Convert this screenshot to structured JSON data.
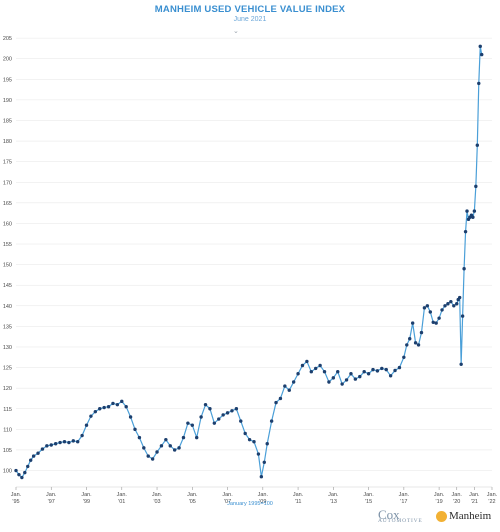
{
  "header": {
    "title": "MANHEIM USED VEHICLE VALUE INDEX",
    "subtitle": "June 2021",
    "collapse_icon": "chevron-down-icon"
  },
  "footer": {
    "note": "January 1995=100",
    "logo_cox_main": "Cox",
    "logo_cox_sub": "AUTOMOTIVE",
    "logo_manheim": "Manheim"
  },
  "colors": {
    "line": "#4a9fd8",
    "marker": "#1c3f6e",
    "title": "#3a8fd0",
    "grid": "#e5e5e5"
  },
  "chart_data": {
    "type": "line",
    "title": "MANHEIM USED VEHICLE VALUE INDEX",
    "subtitle": "June 2021",
    "ylim": [
      96,
      206
    ],
    "y_ticks": [
      100,
      105,
      110,
      115,
      120,
      125,
      130,
      135,
      140,
      145,
      150,
      155,
      160,
      165,
      170,
      175,
      180,
      185,
      190,
      195,
      200,
      205
    ],
    "x_ticks": [
      {
        "year": 1995,
        "line1": "Jan.",
        "line2": "'95"
      },
      {
        "year": 1997,
        "line1": "Jan.",
        "line2": "'97"
      },
      {
        "year": 1999,
        "line1": "Jan.",
        "line2": "'99"
      },
      {
        "year": 2001,
        "line1": "Jan.",
        "line2": "'01"
      },
      {
        "year": 2003,
        "line1": "Jan.",
        "line2": "'03"
      },
      {
        "year": 2005,
        "line1": "Jan.",
        "line2": "'05"
      },
      {
        "year": 2007,
        "line1": "Jan.",
        "line2": "'07"
      },
      {
        "year": 2009,
        "line1": "Jan.",
        "line2": "'09"
      },
      {
        "year": 2011,
        "line1": "Jan.",
        "line2": "'11"
      },
      {
        "year": 2013,
        "line1": "Jan.",
        "line2": "'13"
      },
      {
        "year": 2015,
        "line1": "Jan.",
        "line2": "'15"
      },
      {
        "year": 2017,
        "line1": "Jan.",
        "line2": "'17"
      },
      {
        "year": 2019,
        "line1": "Jan.",
        "line2": "'19"
      },
      {
        "year": 2020,
        "line1": "Jan.",
        "line2": "'20"
      },
      {
        "year": 2021,
        "line1": "Jan.",
        "line2": "'21"
      },
      {
        "year": 2022,
        "line1": "Jan.",
        "line2": "'22"
      }
    ],
    "series": [
      {
        "values": [
          {
            "x": "1995-01",
            "y": 100
          },
          {
            "x": "1995-03",
            "y": 99
          },
          {
            "x": "1995-05",
            "y": 98.3
          },
          {
            "x": "1995-07",
            "y": 99.5
          },
          {
            "x": "1995-09",
            "y": 101
          },
          {
            "x": "1995-11",
            "y": 102.5
          },
          {
            "x": "1996-01",
            "y": 103.5
          },
          {
            "x": "1996-04",
            "y": 104.2
          },
          {
            "x": "1996-07",
            "y": 105.2
          },
          {
            "x": "1996-10",
            "y": 106
          },
          {
            "x": "1997-01",
            "y": 106.2
          },
          {
            "x": "1997-04",
            "y": 106.5
          },
          {
            "x": "1997-07",
            "y": 106.8
          },
          {
            "x": "1997-10",
            "y": 107
          },
          {
            "x": "1998-01",
            "y": 106.8
          },
          {
            "x": "1998-04",
            "y": 107.2
          },
          {
            "x": "1998-07",
            "y": 107
          },
          {
            "x": "1998-10",
            "y": 108.5
          },
          {
            "x": "1999-01",
            "y": 111
          },
          {
            "x": "1999-04",
            "y": 113.2
          },
          {
            "x": "1999-07",
            "y": 114.3
          },
          {
            "x": "1999-10",
            "y": 115
          },
          {
            "x": "2000-01",
            "y": 115.3
          },
          {
            "x": "2000-04",
            "y": 115.5
          },
          {
            "x": "2000-07",
            "y": 116.3
          },
          {
            "x": "2000-10",
            "y": 116
          },
          {
            "x": "2001-01",
            "y": 116.8
          },
          {
            "x": "2001-04",
            "y": 115.5
          },
          {
            "x": "2001-07",
            "y": 113
          },
          {
            "x": "2001-10",
            "y": 110
          },
          {
            "x": "2002-01",
            "y": 108
          },
          {
            "x": "2002-04",
            "y": 105.5
          },
          {
            "x": "2002-07",
            "y": 103.5
          },
          {
            "x": "2002-10",
            "y": 102.8
          },
          {
            "x": "2003-01",
            "y": 104.5
          },
          {
            "x": "2003-04",
            "y": 106
          },
          {
            "x": "2003-07",
            "y": 107.5
          },
          {
            "x": "2003-10",
            "y": 106
          },
          {
            "x": "2004-01",
            "y": 105
          },
          {
            "x": "2004-04",
            "y": 105.5
          },
          {
            "x": "2004-07",
            "y": 108
          },
          {
            "x": "2004-10",
            "y": 111.5
          },
          {
            "x": "2005-01",
            "y": 111
          },
          {
            "x": "2005-04",
            "y": 108
          },
          {
            "x": "2005-07",
            "y": 113
          },
          {
            "x": "2005-10",
            "y": 116
          },
          {
            "x": "2006-01",
            "y": 115
          },
          {
            "x": "2006-04",
            "y": 111.5
          },
          {
            "x": "2006-07",
            "y": 112.5
          },
          {
            "x": "2006-10",
            "y": 113.5
          },
          {
            "x": "2007-01",
            "y": 114
          },
          {
            "x": "2007-04",
            "y": 114.5
          },
          {
            "x": "2007-07",
            "y": 115
          },
          {
            "x": "2007-10",
            "y": 112
          },
          {
            "x": "2008-01",
            "y": 109
          },
          {
            "x": "2008-04",
            "y": 107.5
          },
          {
            "x": "2008-07",
            "y": 107
          },
          {
            "x": "2008-10",
            "y": 104
          },
          {
            "x": "2008-12",
            "y": 98.5
          },
          {
            "x": "2009-02",
            "y": 102
          },
          {
            "x": "2009-04",
            "y": 106.5
          },
          {
            "x": "2009-07",
            "y": 112
          },
          {
            "x": "2009-10",
            "y": 116.5
          },
          {
            "x": "2010-01",
            "y": 117.5
          },
          {
            "x": "2010-04",
            "y": 120.5
          },
          {
            "x": "2010-07",
            "y": 119.5
          },
          {
            "x": "2010-10",
            "y": 121.5
          },
          {
            "x": "2011-01",
            "y": 123.5
          },
          {
            "x": "2011-04",
            "y": 125.5
          },
          {
            "x": "2011-07",
            "y": 126.5
          },
          {
            "x": "2011-10",
            "y": 124
          },
          {
            "x": "2012-01",
            "y": 124.8
          },
          {
            "x": "2012-04",
            "y": 125.5
          },
          {
            "x": "2012-07",
            "y": 124
          },
          {
            "x": "2012-10",
            "y": 121.5
          },
          {
            "x": "2013-01",
            "y": 122.5
          },
          {
            "x": "2013-04",
            "y": 124
          },
          {
            "x": "2013-07",
            "y": 121
          },
          {
            "x": "2013-10",
            "y": 122
          },
          {
            "x": "2014-01",
            "y": 123.5
          },
          {
            "x": "2014-04",
            "y": 122.2
          },
          {
            "x": "2014-07",
            "y": 122.8
          },
          {
            "x": "2014-10",
            "y": 124
          },
          {
            "x": "2015-01",
            "y": 123.5
          },
          {
            "x": "2015-04",
            "y": 124.5
          },
          {
            "x": "2015-07",
            "y": 124.2
          },
          {
            "x": "2015-10",
            "y": 124.8
          },
          {
            "x": "2016-01",
            "y": 124.5
          },
          {
            "x": "2016-04",
            "y": 123
          },
          {
            "x": "2016-07",
            "y": 124.3
          },
          {
            "x": "2016-10",
            "y": 125
          },
          {
            "x": "2017-01",
            "y": 127.5
          },
          {
            "x": "2017-03",
            "y": 130.5
          },
          {
            "x": "2017-05",
            "y": 132
          },
          {
            "x": "2017-07",
            "y": 135.8
          },
          {
            "x": "2017-09",
            "y": 131
          },
          {
            "x": "2017-11",
            "y": 130.5
          },
          {
            "x": "2018-01",
            "y": 133.5
          },
          {
            "x": "2018-03",
            "y": 139.5
          },
          {
            "x": "2018-05",
            "y": 140
          },
          {
            "x": "2018-07",
            "y": 138.5
          },
          {
            "x": "2018-09",
            "y": 136
          },
          {
            "x": "2018-11",
            "y": 135.8
          },
          {
            "x": "2019-01",
            "y": 137
          },
          {
            "x": "2019-03",
            "y": 139
          },
          {
            "x": "2019-05",
            "y": 140
          },
          {
            "x": "2019-07",
            "y": 140.5
          },
          {
            "x": "2019-09",
            "y": 141
          },
          {
            "x": "2019-11",
            "y": 140
          },
          {
            "x": "2020-01",
            "y": 140.5
          },
          {
            "x": "2020-02",
            "y": 141.5
          },
          {
            "x": "2020-03",
            "y": 142
          },
          {
            "x": "2020-04",
            "y": 125.8
          },
          {
            "x": "2020-05",
            "y": 137.5
          },
          {
            "x": "2020-06",
            "y": 149
          },
          {
            "x": "2020-07",
            "y": 158
          },
          {
            "x": "2020-08",
            "y": 163
          },
          {
            "x": "2020-09",
            "y": 161
          },
          {
            "x": "2020-10",
            "y": 161.5
          },
          {
            "x": "2020-11",
            "y": 162
          },
          {
            "x": "2020-12",
            "y": 161.5
          },
          {
            "x": "2021-01",
            "y": 163
          },
          {
            "x": "2021-02",
            "y": 169
          },
          {
            "x": "2021-03",
            "y": 179
          },
          {
            "x": "2021-04",
            "y": 194
          },
          {
            "x": "2021-05",
            "y": 203
          },
          {
            "x": "2021-06",
            "y": 201
          }
        ]
      }
    ]
  }
}
